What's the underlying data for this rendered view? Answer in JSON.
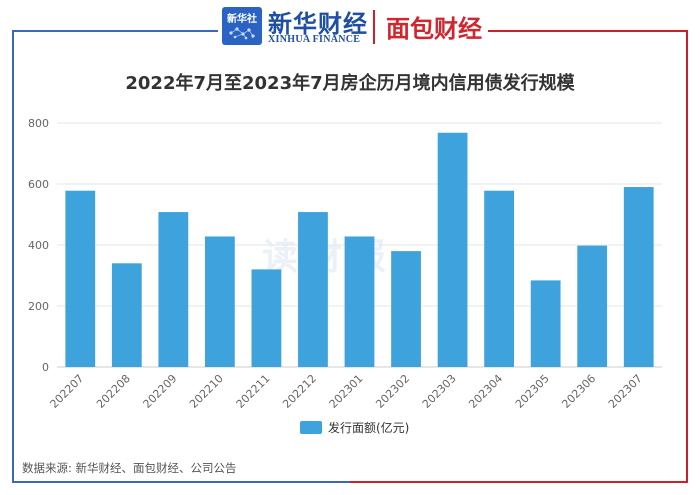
{
  "header": {
    "xinhua_badge": "新华社",
    "xinhua_brand": "新华财经",
    "xinhua_brand_en": "XINHUA FINANCE",
    "partner_brand": "面包财经"
  },
  "watermark": "读财报",
  "source": "数据来源: 新华财经、面包财经、公司公告",
  "colors": {
    "bar": "#3ea2dd",
    "frame_blue": "#3b68b8",
    "frame_red": "#c8232c",
    "grid": "#e6e6e6"
  },
  "chart_data": {
    "type": "bar",
    "title": "2022年7月至2023年7月房企历月境内信用债发行规模",
    "categories": [
      "202207",
      "202208",
      "202209",
      "202210",
      "202211",
      "202212",
      "202301",
      "202302",
      "202303",
      "202304",
      "202305",
      "202306",
      "202307"
    ],
    "series": [
      {
        "name": "发行面额(亿元)",
        "values": [
          578,
          340,
          508,
          428,
          320,
          508,
          428,
          380,
          768,
          578,
          284,
          398,
          590
        ]
      }
    ],
    "yticks": [
      0,
      200,
      400,
      600,
      800
    ],
    "ylim": [
      0,
      800
    ],
    "xlabel": "",
    "ylabel": "",
    "grid": true,
    "legend_position": "bottom-center"
  }
}
